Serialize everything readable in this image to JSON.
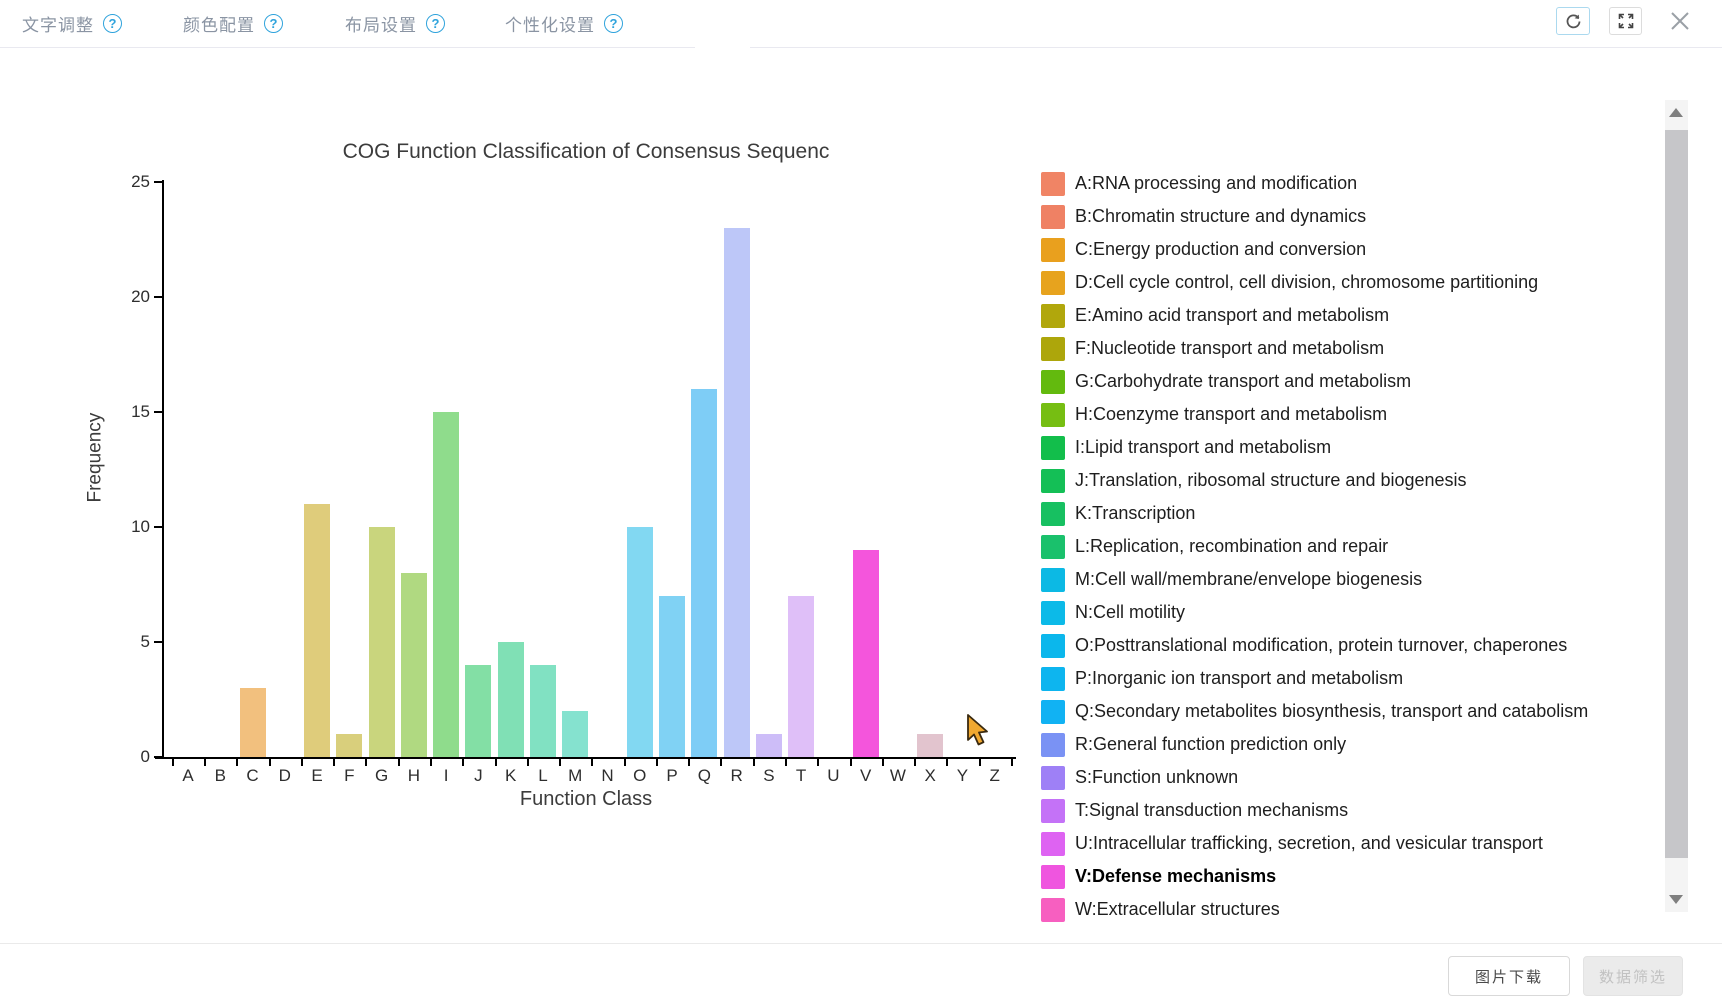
{
  "toolbar": {
    "tabs": [
      {
        "id": "text-adjustment",
        "label": "文字调整",
        "help": "?"
      },
      {
        "id": "color-config",
        "label": "颜色配置",
        "help": "?"
      },
      {
        "id": "layout-settings",
        "label": "布局设置",
        "help": "?"
      },
      {
        "id": "personalization",
        "label": "个性化设置",
        "help": "?"
      }
    ],
    "window_controls": {
      "refresh_icon": "refresh",
      "fullscreen_icon": "fullscreen-expand",
      "close_icon": "close-x"
    }
  },
  "chart_data": {
    "type": "bar",
    "title": "COG Function Classification of Consensus Sequenc",
    "xlabel": "Function Class",
    "ylabel": "Frequency",
    "ylim": [
      0,
      25
    ],
    "yticks": [
      0,
      5,
      10,
      15,
      20,
      25
    ],
    "grid": false,
    "legend_position": "right",
    "categories": [
      "A",
      "B",
      "C",
      "D",
      "E",
      "F",
      "G",
      "H",
      "I",
      "J",
      "K",
      "L",
      "M",
      "N",
      "O",
      "P",
      "Q",
      "R",
      "S",
      "T",
      "U",
      "V",
      "W",
      "X",
      "Y",
      "Z"
    ],
    "values": [
      0,
      0,
      3,
      0,
      11,
      1,
      10,
      8,
      15,
      4,
      5,
      4,
      2,
      0,
      10,
      7,
      16,
      23,
      1,
      7,
      0,
      9,
      0,
      1,
      0,
      0
    ],
    "bar_colors": [
      "#F5AE93",
      "#F3B288",
      "#F2C07E",
      "#EFC87E",
      "#DFCC7B",
      "#D9CF7C",
      "#C9D57D",
      "#B0D981",
      "#8FDC8C",
      "#83DFA5",
      "#80E0B5",
      "#81E1C2",
      "#85E2CF",
      "#84DEE6",
      "#82D8F2",
      "#80D2F4",
      "#7ECDF6",
      "#BDC7F8",
      "#CDBDF8",
      "#DFBFF8",
      "#EDBDF4",
      "#F455DC",
      "#F9A8DC",
      "#E2C4CE",
      "#E4C6CC",
      "#E6C8CA"
    ],
    "highlighted_category": "V",
    "legend": [
      {
        "key": "A",
        "label": "A:RNA processing and modification",
        "color": "#F08465",
        "bold": false
      },
      {
        "key": "B",
        "label": "B:Chromatin structure and dynamics",
        "color": "#EF8164",
        "bold": false
      },
      {
        "key": "C",
        "label": "C:Energy production and conversion",
        "color": "#E9A01E",
        "bold": false
      },
      {
        "key": "D",
        "label": "D:Cell cycle control, cell division, chromosome partitioning",
        "color": "#E7A31E",
        "bold": false
      },
      {
        "key": "E",
        "label": "E:Amino acid transport and metabolism",
        "color": "#B1A70C",
        "bold": false
      },
      {
        "key": "F",
        "label": "F:Nucleotide transport and metabolism",
        "color": "#ADA60B",
        "bold": false
      },
      {
        "key": "G",
        "label": "G:Carbohydrate transport and metabolism",
        "color": "#63BA0E",
        "bold": false
      },
      {
        "key": "H",
        "label": "H:Coenzyme transport and metabolism",
        "color": "#76BE12",
        "bold": false
      },
      {
        "key": "I",
        "label": "I:Lipid transport and metabolism",
        "color": "#12BE4B",
        "bold": false
      },
      {
        "key": "J",
        "label": "J:Translation, ribosomal structure and biogenesis",
        "color": "#14BF56",
        "bold": false
      },
      {
        "key": "K",
        "label": "K:Transcription",
        "color": "#17C061",
        "bold": false
      },
      {
        "key": "L",
        "label": "L:Replication, recombination and repair",
        "color": "#1AC16C",
        "bold": false
      },
      {
        "key": "M",
        "label": "M:Cell wall/membrane/envelope biogenesis",
        "color": "#0CB9E4",
        "bold": false
      },
      {
        "key": "N",
        "label": "N:Cell motility",
        "color": "#0CBAE8",
        "bold": false
      },
      {
        "key": "O",
        "label": "O:Posttranslational modification, protein turnover, chaperones",
        "color": "#0BB7EC",
        "bold": false
      },
      {
        "key": "P",
        "label": "P:Inorganic ion transport and metabolism",
        "color": "#0DB5EF",
        "bold": false
      },
      {
        "key": "Q",
        "label": "Q:Secondary metabolites biosynthesis, transport and catabolism",
        "color": "#11B2F3",
        "bold": false
      },
      {
        "key": "R",
        "label": "R:General function prediction only",
        "color": "#7A92F4",
        "bold": false
      },
      {
        "key": "S",
        "label": "S:Function unknown",
        "color": "#9E80F6",
        "bold": false
      },
      {
        "key": "T",
        "label": "T:Signal transduction mechanisms",
        "color": "#C472F7",
        "bold": false
      },
      {
        "key": "U",
        "label": "U:Intracellular trafficking, secretion, and vesicular transport",
        "color": "#DE63F2",
        "bold": false
      },
      {
        "key": "V",
        "label": "V:Defense mechanisms",
        "color": "#EF55DF",
        "bold": true
      },
      {
        "key": "W",
        "label": "W:Extracellular structures",
        "color": "#F75FC0",
        "bold": false
      }
    ]
  },
  "footer": {
    "download_button": "图片下载",
    "filter_button": "数据筛选"
  },
  "colors": {
    "accent_blue": "#2FA3DC",
    "tab_text": "#8A94A3",
    "axis": "#000000",
    "disabled_text": "#C2C2C2"
  }
}
